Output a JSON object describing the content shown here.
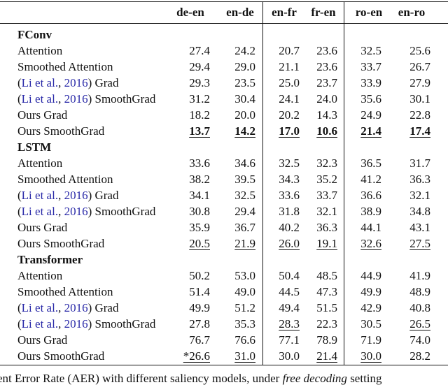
{
  "table": {
    "columns": [
      "de-en",
      "en-de",
      "en-fr",
      "fr-en",
      "ro-en",
      "en-ro"
    ],
    "groups": [
      {
        "name": "FConv",
        "rows": [
          {
            "label": [
              "Attention"
            ],
            "cells": [
              "27.4",
              "24.2",
              "20.7",
              "23.6",
              "32.5",
              "25.6"
            ]
          },
          {
            "label": [
              "Smoothed Attention"
            ],
            "cells": [
              "29.4",
              "29.0",
              "21.1",
              "23.6",
              "33.7",
              "26.7"
            ]
          },
          {
            "label": [
              "(",
              "Li et al.",
              ", ",
              "2016",
              ") Grad"
            ],
            "cells": [
              "29.3",
              "23.5",
              "25.0",
              "23.7",
              "33.9",
              "27.9"
            ]
          },
          {
            "label": [
              "(",
              "Li et al.",
              ", ",
              "2016",
              ") SmoothGrad"
            ],
            "cells": [
              "31.2",
              "30.4",
              "24.1",
              "24.0",
              "35.6",
              "30.1"
            ]
          },
          {
            "label": [
              "Ours Grad"
            ],
            "cells": [
              "18.2",
              "20.0",
              "20.2",
              "14.3",
              "24.9",
              "22.8"
            ]
          },
          {
            "label": [
              "Ours SmoothGrad"
            ],
            "cells": [
              "13.7",
              "14.2",
              "17.0",
              "10.6",
              "21.4",
              "17.4"
            ]
          }
        ]
      },
      {
        "name": "LSTM",
        "rows": [
          {
            "label": [
              "Attention"
            ],
            "cells": [
              "33.6",
              "34.6",
              "32.5",
              "32.3",
              "36.5",
              "31.7"
            ]
          },
          {
            "label": [
              "Smoothed Attention"
            ],
            "cells": [
              "38.2",
              "39.5",
              "34.3",
              "35.2",
              "41.2",
              "36.3"
            ]
          },
          {
            "label": [
              "(",
              "Li et al.",
              ", ",
              "2016",
              ") Grad"
            ],
            "cells": [
              "34.1",
              "32.5",
              "33.6",
              "33.7",
              "36.6",
              "32.1"
            ]
          },
          {
            "label": [
              "(",
              "Li et al.",
              ", ",
              "2016",
              ") SmoothGrad"
            ],
            "cells": [
              "30.8",
              "29.4",
              "31.8",
              "32.1",
              "38.9",
              "34.8"
            ]
          },
          {
            "label": [
              "Ours Grad"
            ],
            "cells": [
              "35.9",
              "36.7",
              "40.2",
              "36.3",
              "44.1",
              "43.1"
            ]
          },
          {
            "label": [
              "Ours SmoothGrad"
            ],
            "cells": [
              "20.5",
              "21.9",
              "26.0",
              "19.1",
              "32.6",
              "27.5"
            ]
          }
        ]
      },
      {
        "name": "Transformer",
        "rows": [
          {
            "label": [
              "Attention"
            ],
            "cells": [
              "50.2",
              "53.0",
              "50.4",
              "48.5",
              "44.9",
              "41.9"
            ]
          },
          {
            "label": [
              "Smoothed Attention"
            ],
            "cells": [
              "51.4",
              "49.0",
              "44.5",
              "47.3",
              "49.9",
              "48.9"
            ]
          },
          {
            "label": [
              "(",
              "Li et al.",
              ", ",
              "2016",
              ") Grad"
            ],
            "cells": [
              "49.9",
              "51.2",
              "49.4",
              "51.5",
              "42.9",
              "40.8"
            ]
          },
          {
            "label": [
              "(",
              "Li et al.",
              ", ",
              "2016",
              ") SmoothGrad"
            ],
            "cells": [
              "27.8",
              "35.3",
              "28.3",
              "22.3",
              "30.5",
              "26.5"
            ]
          },
          {
            "label": [
              "Ours Grad"
            ],
            "cells": [
              "76.7",
              "76.6",
              "77.1",
              "78.9",
              "71.9",
              "74.0"
            ]
          },
          {
            "label": [
              "Ours SmoothGrad"
            ],
            "cells": [
              "*26.6",
              "31.0",
              "30.0",
              "21.4",
              "30.0",
              "28.2"
            ]
          }
        ]
      }
    ]
  },
  "caption": [
    "ent Error Rate (AER) with different saliency models, under ",
    "free decoding",
    " setting"
  ]
}
